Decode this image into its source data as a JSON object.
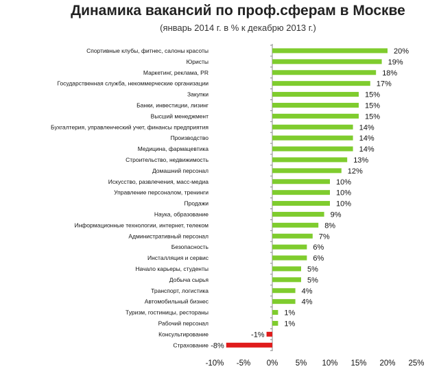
{
  "chart_data": {
    "type": "bar",
    "orientation": "horizontal",
    "title": "Динамика вакансий по проф.сферам в Москве",
    "subtitle": "(январь 2014 г. в % к декабрю 2013 г.)",
    "categories": [
      "Спортивные клубы, фитнес, салоны красоты",
      "Юристы",
      "Маркетинг, реклама, PR",
      "Государственная служба, некоммерческие организации",
      "Закупки",
      "Банки, инвестиции, лизинг",
      "Высший менеджмент",
      "Бухгалтерия, управленческий учет, финансы предприятия",
      "Производство",
      "Медицина, фармацевтика",
      "Строительство, недвижимость",
      "Домашний персонал",
      "Искусство, развлечения, масс-медиа",
      "Управление персоналом, тренинги",
      "Продажи",
      "Наука, образование",
      "Информационные технологии, интернет, телеком",
      "Административный персонал",
      "Безопасность",
      "Инсталляция и сервис",
      "Начало карьеры, студенты",
      "Добыча сырья",
      "Транспорт, логистика",
      "Автомобильный бизнес",
      "Туризм, гостиницы, рестораны",
      "Рабочий персонал",
      "Консультирование",
      "Страхование"
    ],
    "values": [
      20,
      19,
      18,
      17,
      15,
      15,
      15,
      14,
      14,
      14,
      13,
      12,
      10,
      10,
      10,
      9,
      8,
      7,
      6,
      6,
      5,
      5,
      4,
      4,
      1,
      1,
      -1,
      -8
    ],
    "labels": [
      "20%",
      "19%",
      "18%",
      "17%",
      "15%",
      "15%",
      "15%",
      "14%",
      "14%",
      "14%",
      "13%",
      "12%",
      "10%",
      "10%",
      "10%",
      "9%",
      "8%",
      "7%",
      "6%",
      "6%",
      "5%",
      "5%",
      "4%",
      "4%",
      "1%",
      "1%",
      "-1%",
      "-8%"
    ],
    "xlim": [
      -10,
      25
    ],
    "xticks": [
      -10,
      -5,
      0,
      5,
      10,
      15,
      20,
      25
    ],
    "xtick_labels": [
      "-10%",
      "-5%",
      "0%",
      "5%",
      "10%",
      "15%",
      "20%",
      "25%"
    ],
    "grid": false,
    "legend": "none",
    "colors": {
      "positive": "#7fcc2e",
      "negative": "#e01b1b",
      "axis": "#888888"
    }
  }
}
